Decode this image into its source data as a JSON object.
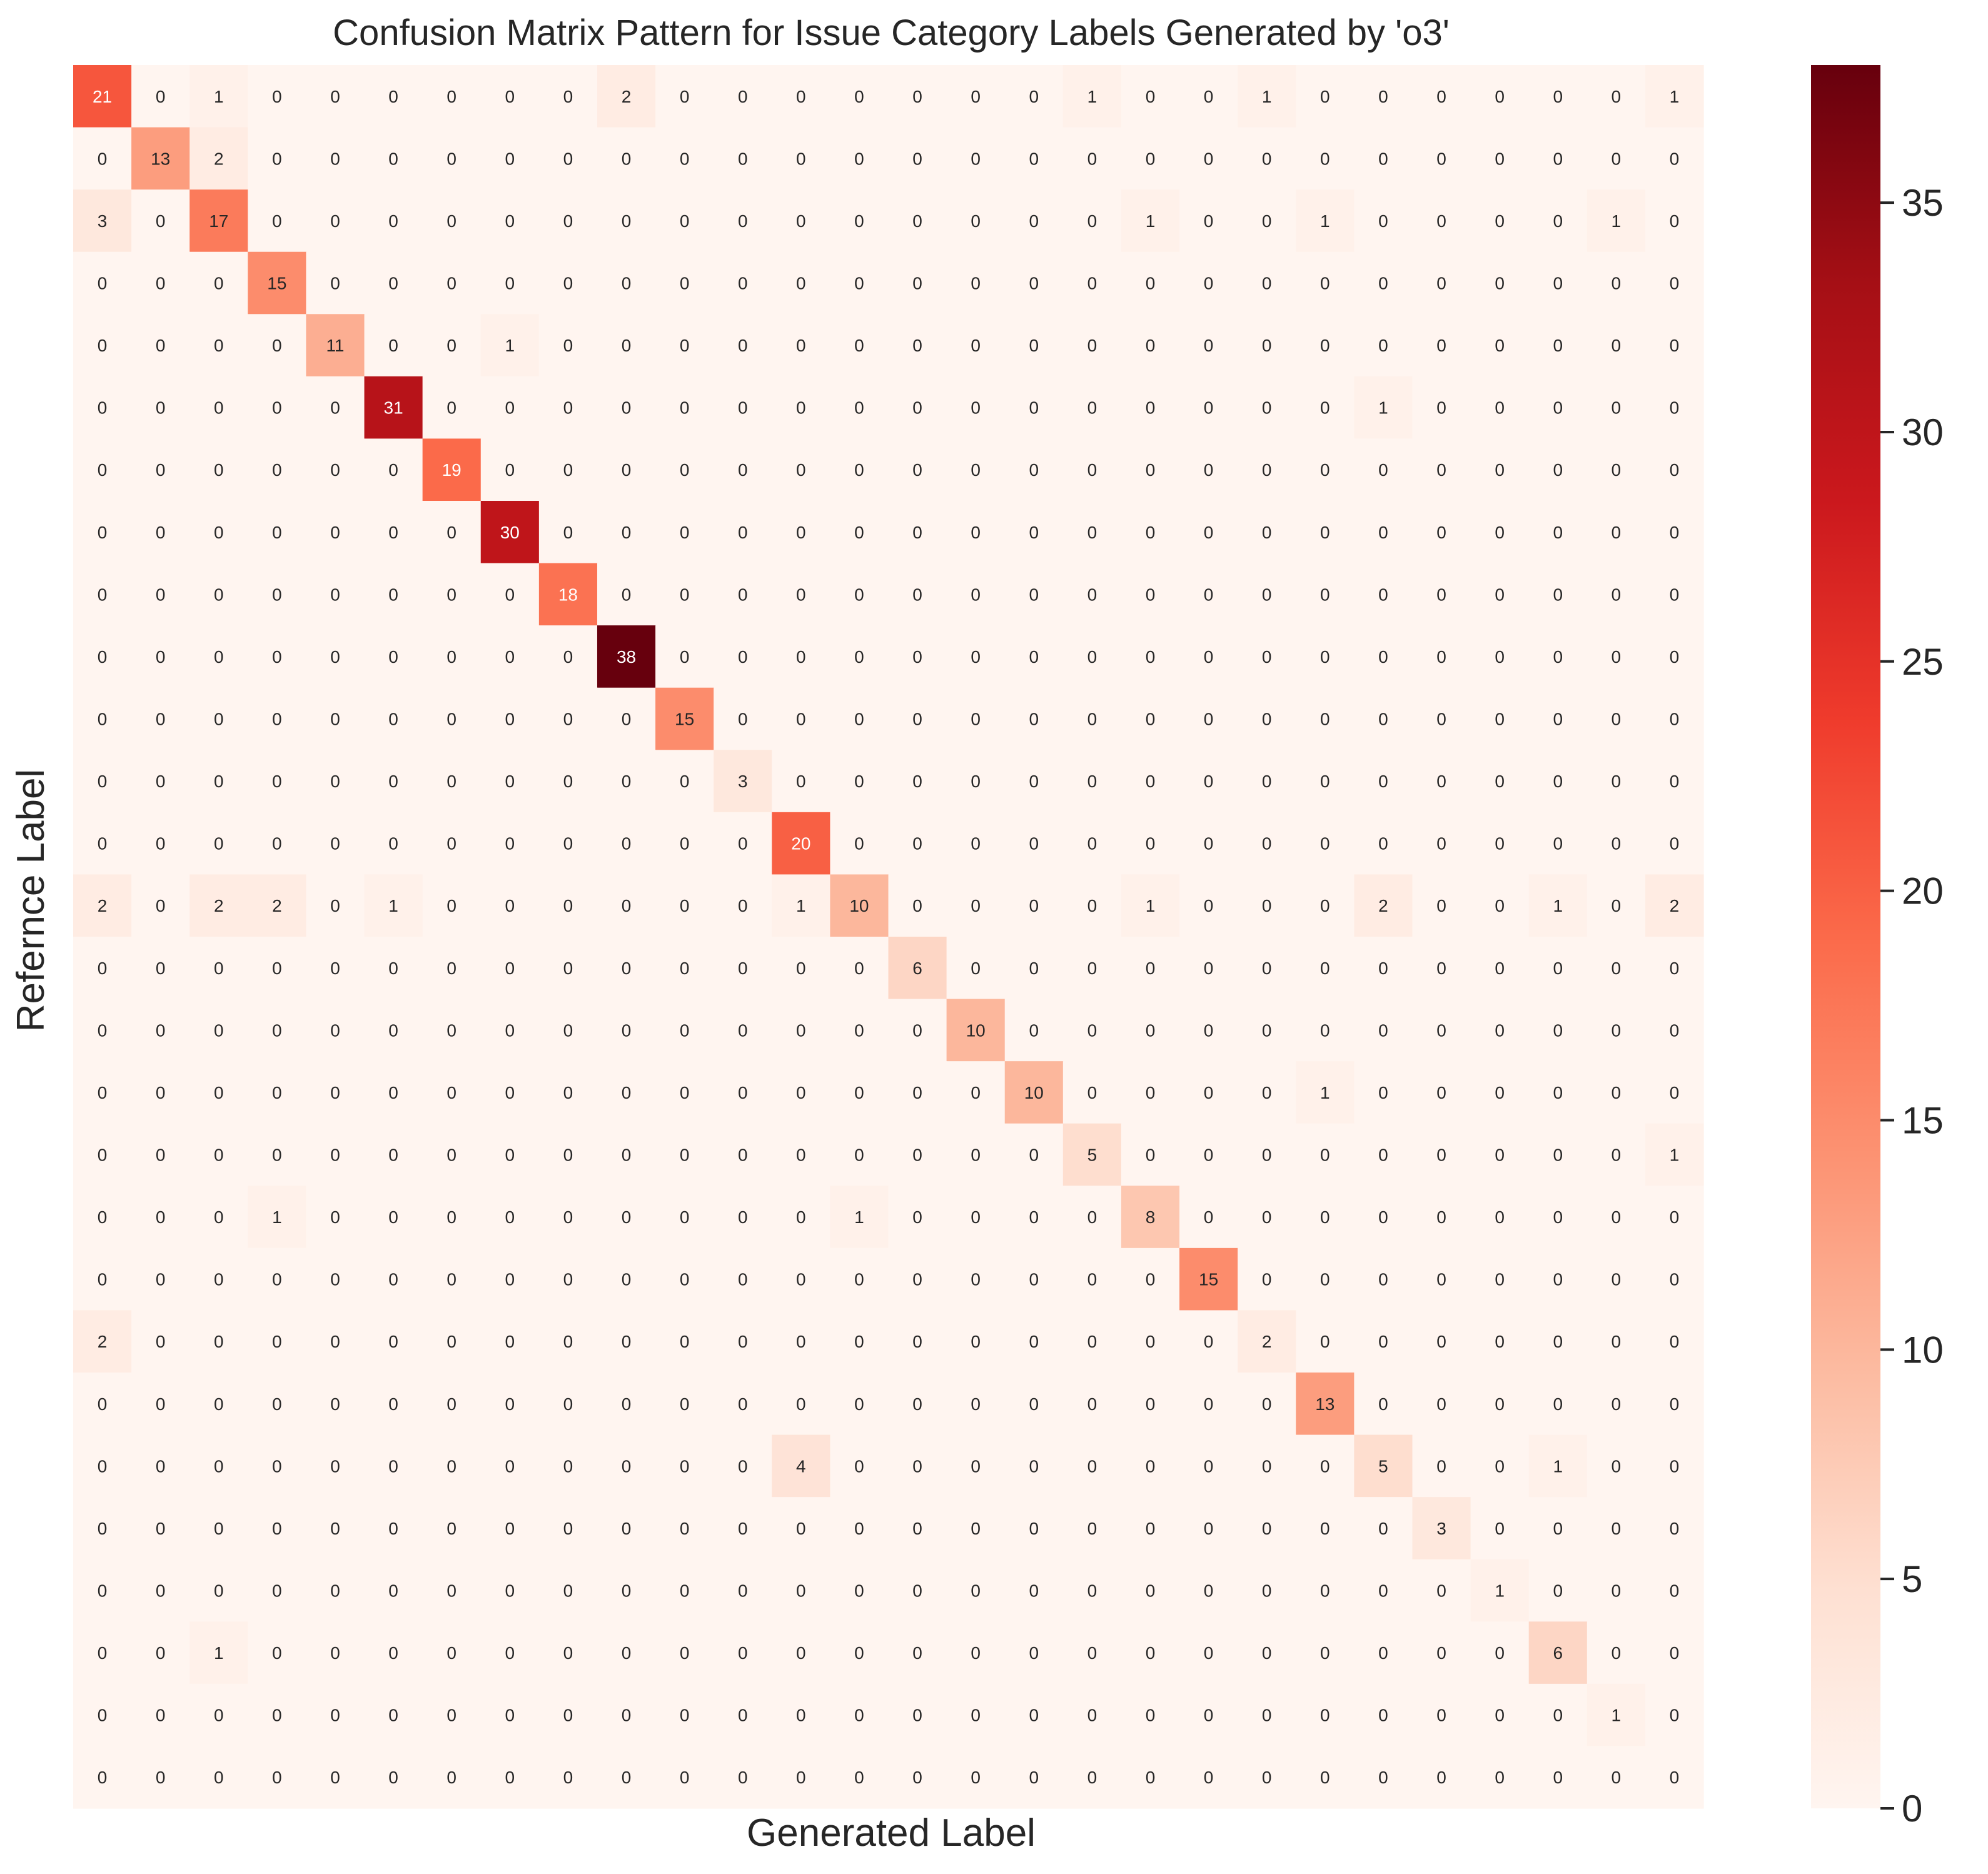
{
  "chart_data": {
    "type": "heatmap",
    "title": "Confusion Matrix Pattern for Issue Category Labels Generated by 'o3'",
    "xlabel": "Generated Label",
    "ylabel": "Refernce Label",
    "colormap": "Reds",
    "colorbar": {
      "vmin": 0,
      "vmax": 38,
      "ticks": [
        0,
        5,
        10,
        15,
        20,
        25,
        30,
        35
      ]
    },
    "grid": false,
    "matrix": [
      [
        21,
        0,
        1,
        0,
        0,
        0,
        0,
        0,
        0,
        2,
        0,
        0,
        0,
        0,
        0,
        0,
        0,
        1,
        0,
        0,
        1,
        0,
        0,
        0,
        0,
        0,
        0,
        1
      ],
      [
        0,
        13,
        2,
        0,
        0,
        0,
        0,
        0,
        0,
        0,
        0,
        0,
        0,
        0,
        0,
        0,
        0,
        0,
        0,
        0,
        0,
        0,
        0,
        0,
        0,
        0,
        0,
        0
      ],
      [
        3,
        0,
        17,
        0,
        0,
        0,
        0,
        0,
        0,
        0,
        0,
        0,
        0,
        0,
        0,
        0,
        0,
        0,
        1,
        0,
        0,
        1,
        0,
        0,
        0,
        0,
        1,
        0
      ],
      [
        0,
        0,
        0,
        15,
        0,
        0,
        0,
        0,
        0,
        0,
        0,
        0,
        0,
        0,
        0,
        0,
        0,
        0,
        0,
        0,
        0,
        0,
        0,
        0,
        0,
        0,
        0,
        0
      ],
      [
        0,
        0,
        0,
        0,
        11,
        0,
        0,
        1,
        0,
        0,
        0,
        0,
        0,
        0,
        0,
        0,
        0,
        0,
        0,
        0,
        0,
        0,
        0,
        0,
        0,
        0,
        0,
        0
      ],
      [
        0,
        0,
        0,
        0,
        0,
        31,
        0,
        0,
        0,
        0,
        0,
        0,
        0,
        0,
        0,
        0,
        0,
        0,
        0,
        0,
        0,
        0,
        1,
        0,
        0,
        0,
        0,
        0
      ],
      [
        0,
        0,
        0,
        0,
        0,
        0,
        19,
        0,
        0,
        0,
        0,
        0,
        0,
        0,
        0,
        0,
        0,
        0,
        0,
        0,
        0,
        0,
        0,
        0,
        0,
        0,
        0,
        0
      ],
      [
        0,
        0,
        0,
        0,
        0,
        0,
        0,
        30,
        0,
        0,
        0,
        0,
        0,
        0,
        0,
        0,
        0,
        0,
        0,
        0,
        0,
        0,
        0,
        0,
        0,
        0,
        0,
        0
      ],
      [
        0,
        0,
        0,
        0,
        0,
        0,
        0,
        0,
        18,
        0,
        0,
        0,
        0,
        0,
        0,
        0,
        0,
        0,
        0,
        0,
        0,
        0,
        0,
        0,
        0,
        0,
        0,
        0
      ],
      [
        0,
        0,
        0,
        0,
        0,
        0,
        0,
        0,
        0,
        38,
        0,
        0,
        0,
        0,
        0,
        0,
        0,
        0,
        0,
        0,
        0,
        0,
        0,
        0,
        0,
        0,
        0,
        0
      ],
      [
        0,
        0,
        0,
        0,
        0,
        0,
        0,
        0,
        0,
        0,
        15,
        0,
        0,
        0,
        0,
        0,
        0,
        0,
        0,
        0,
        0,
        0,
        0,
        0,
        0,
        0,
        0,
        0
      ],
      [
        0,
        0,
        0,
        0,
        0,
        0,
        0,
        0,
        0,
        0,
        0,
        3,
        0,
        0,
        0,
        0,
        0,
        0,
        0,
        0,
        0,
        0,
        0,
        0,
        0,
        0,
        0,
        0
      ],
      [
        0,
        0,
        0,
        0,
        0,
        0,
        0,
        0,
        0,
        0,
        0,
        0,
        20,
        0,
        0,
        0,
        0,
        0,
        0,
        0,
        0,
        0,
        0,
        0,
        0,
        0,
        0,
        0
      ],
      [
        2,
        0,
        2,
        2,
        0,
        1,
        0,
        0,
        0,
        0,
        0,
        0,
        1,
        10,
        0,
        0,
        0,
        0,
        1,
        0,
        0,
        0,
        2,
        0,
        0,
        1,
        0,
        2
      ],
      [
        0,
        0,
        0,
        0,
        0,
        0,
        0,
        0,
        0,
        0,
        0,
        0,
        0,
        0,
        6,
        0,
        0,
        0,
        0,
        0,
        0,
        0,
        0,
        0,
        0,
        0,
        0,
        0
      ],
      [
        0,
        0,
        0,
        0,
        0,
        0,
        0,
        0,
        0,
        0,
        0,
        0,
        0,
        0,
        0,
        10,
        0,
        0,
        0,
        0,
        0,
        0,
        0,
        0,
        0,
        0,
        0,
        0
      ],
      [
        0,
        0,
        0,
        0,
        0,
        0,
        0,
        0,
        0,
        0,
        0,
        0,
        0,
        0,
        0,
        0,
        10,
        0,
        0,
        0,
        0,
        1,
        0,
        0,
        0,
        0,
        0,
        0
      ],
      [
        0,
        0,
        0,
        0,
        0,
        0,
        0,
        0,
        0,
        0,
        0,
        0,
        0,
        0,
        0,
        0,
        0,
        5,
        0,
        0,
        0,
        0,
        0,
        0,
        0,
        0,
        0,
        1
      ],
      [
        0,
        0,
        0,
        1,
        0,
        0,
        0,
        0,
        0,
        0,
        0,
        0,
        0,
        1,
        0,
        0,
        0,
        0,
        8,
        0,
        0,
        0,
        0,
        0,
        0,
        0,
        0,
        0
      ],
      [
        0,
        0,
        0,
        0,
        0,
        0,
        0,
        0,
        0,
        0,
        0,
        0,
        0,
        0,
        0,
        0,
        0,
        0,
        0,
        15,
        0,
        0,
        0,
        0,
        0,
        0,
        0,
        0
      ],
      [
        2,
        0,
        0,
        0,
        0,
        0,
        0,
        0,
        0,
        0,
        0,
        0,
        0,
        0,
        0,
        0,
        0,
        0,
        0,
        0,
        2,
        0,
        0,
        0,
        0,
        0,
        0,
        0
      ],
      [
        0,
        0,
        0,
        0,
        0,
        0,
        0,
        0,
        0,
        0,
        0,
        0,
        0,
        0,
        0,
        0,
        0,
        0,
        0,
        0,
        0,
        13,
        0,
        0,
        0,
        0,
        0,
        0
      ],
      [
        0,
        0,
        0,
        0,
        0,
        0,
        0,
        0,
        0,
        0,
        0,
        0,
        4,
        0,
        0,
        0,
        0,
        0,
        0,
        0,
        0,
        0,
        5,
        0,
        0,
        1,
        0,
        0
      ],
      [
        0,
        0,
        0,
        0,
        0,
        0,
        0,
        0,
        0,
        0,
        0,
        0,
        0,
        0,
        0,
        0,
        0,
        0,
        0,
        0,
        0,
        0,
        0,
        3,
        0,
        0,
        0,
        0
      ],
      [
        0,
        0,
        0,
        0,
        0,
        0,
        0,
        0,
        0,
        0,
        0,
        0,
        0,
        0,
        0,
        0,
        0,
        0,
        0,
        0,
        0,
        0,
        0,
        0,
        1,
        0,
        0,
        0
      ],
      [
        0,
        0,
        1,
        0,
        0,
        0,
        0,
        0,
        0,
        0,
        0,
        0,
        0,
        0,
        0,
        0,
        0,
        0,
        0,
        0,
        0,
        0,
        0,
        0,
        0,
        6,
        0,
        0
      ],
      [
        0,
        0,
        0,
        0,
        0,
        0,
        0,
        0,
        0,
        0,
        0,
        0,
        0,
        0,
        0,
        0,
        0,
        0,
        0,
        0,
        0,
        0,
        0,
        0,
        0,
        0,
        1,
        0
      ],
      [
        0,
        0,
        0,
        0,
        0,
        0,
        0,
        0,
        0,
        0,
        0,
        0,
        0,
        0,
        0,
        0,
        0,
        0,
        0,
        0,
        0,
        0,
        0,
        0,
        0,
        0,
        0,
        0
      ]
    ]
  }
}
